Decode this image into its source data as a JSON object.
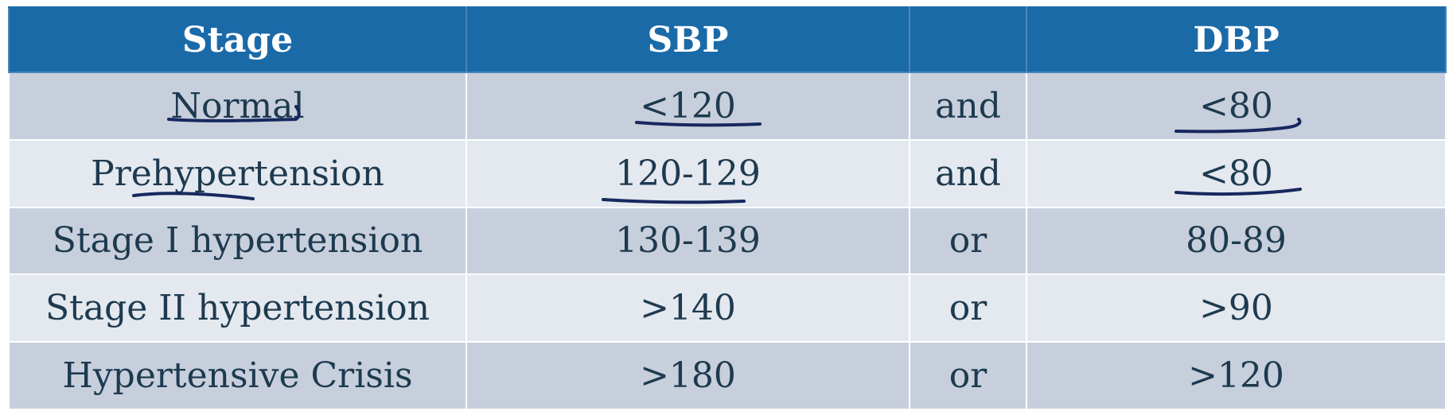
{
  "table": {
    "headers": {
      "stage": "Stage",
      "sbp": "SBP",
      "connector": "",
      "dbp": "DBP"
    },
    "rows": [
      {
        "stage": "Normal",
        "sbp": "<120",
        "connector": "and",
        "dbp": "<80"
      },
      {
        "stage": "Prehypertension",
        "sbp": "120-129",
        "connector": "and",
        "dbp": "<80"
      },
      {
        "stage": "Stage I hypertension",
        "sbp": "130-139",
        "connector": "or",
        "dbp": "80-89"
      },
      {
        "stage": "Stage II hypertension",
        "sbp": ">140",
        "connector": "or",
        "dbp": ">90"
      },
      {
        "stage": "Hypertensive Crisis",
        "sbp": ">180",
        "connector": "or",
        "dbp": ">120"
      }
    ]
  },
  "colors": {
    "header_background": "#1a6aa8",
    "header_text": "#ffffff",
    "row_odd_background": "#c8cfdc",
    "row_even_background": "#e4e8ef",
    "cell_text": "#1d3a4f",
    "pen_annotation": "#16285e"
  }
}
